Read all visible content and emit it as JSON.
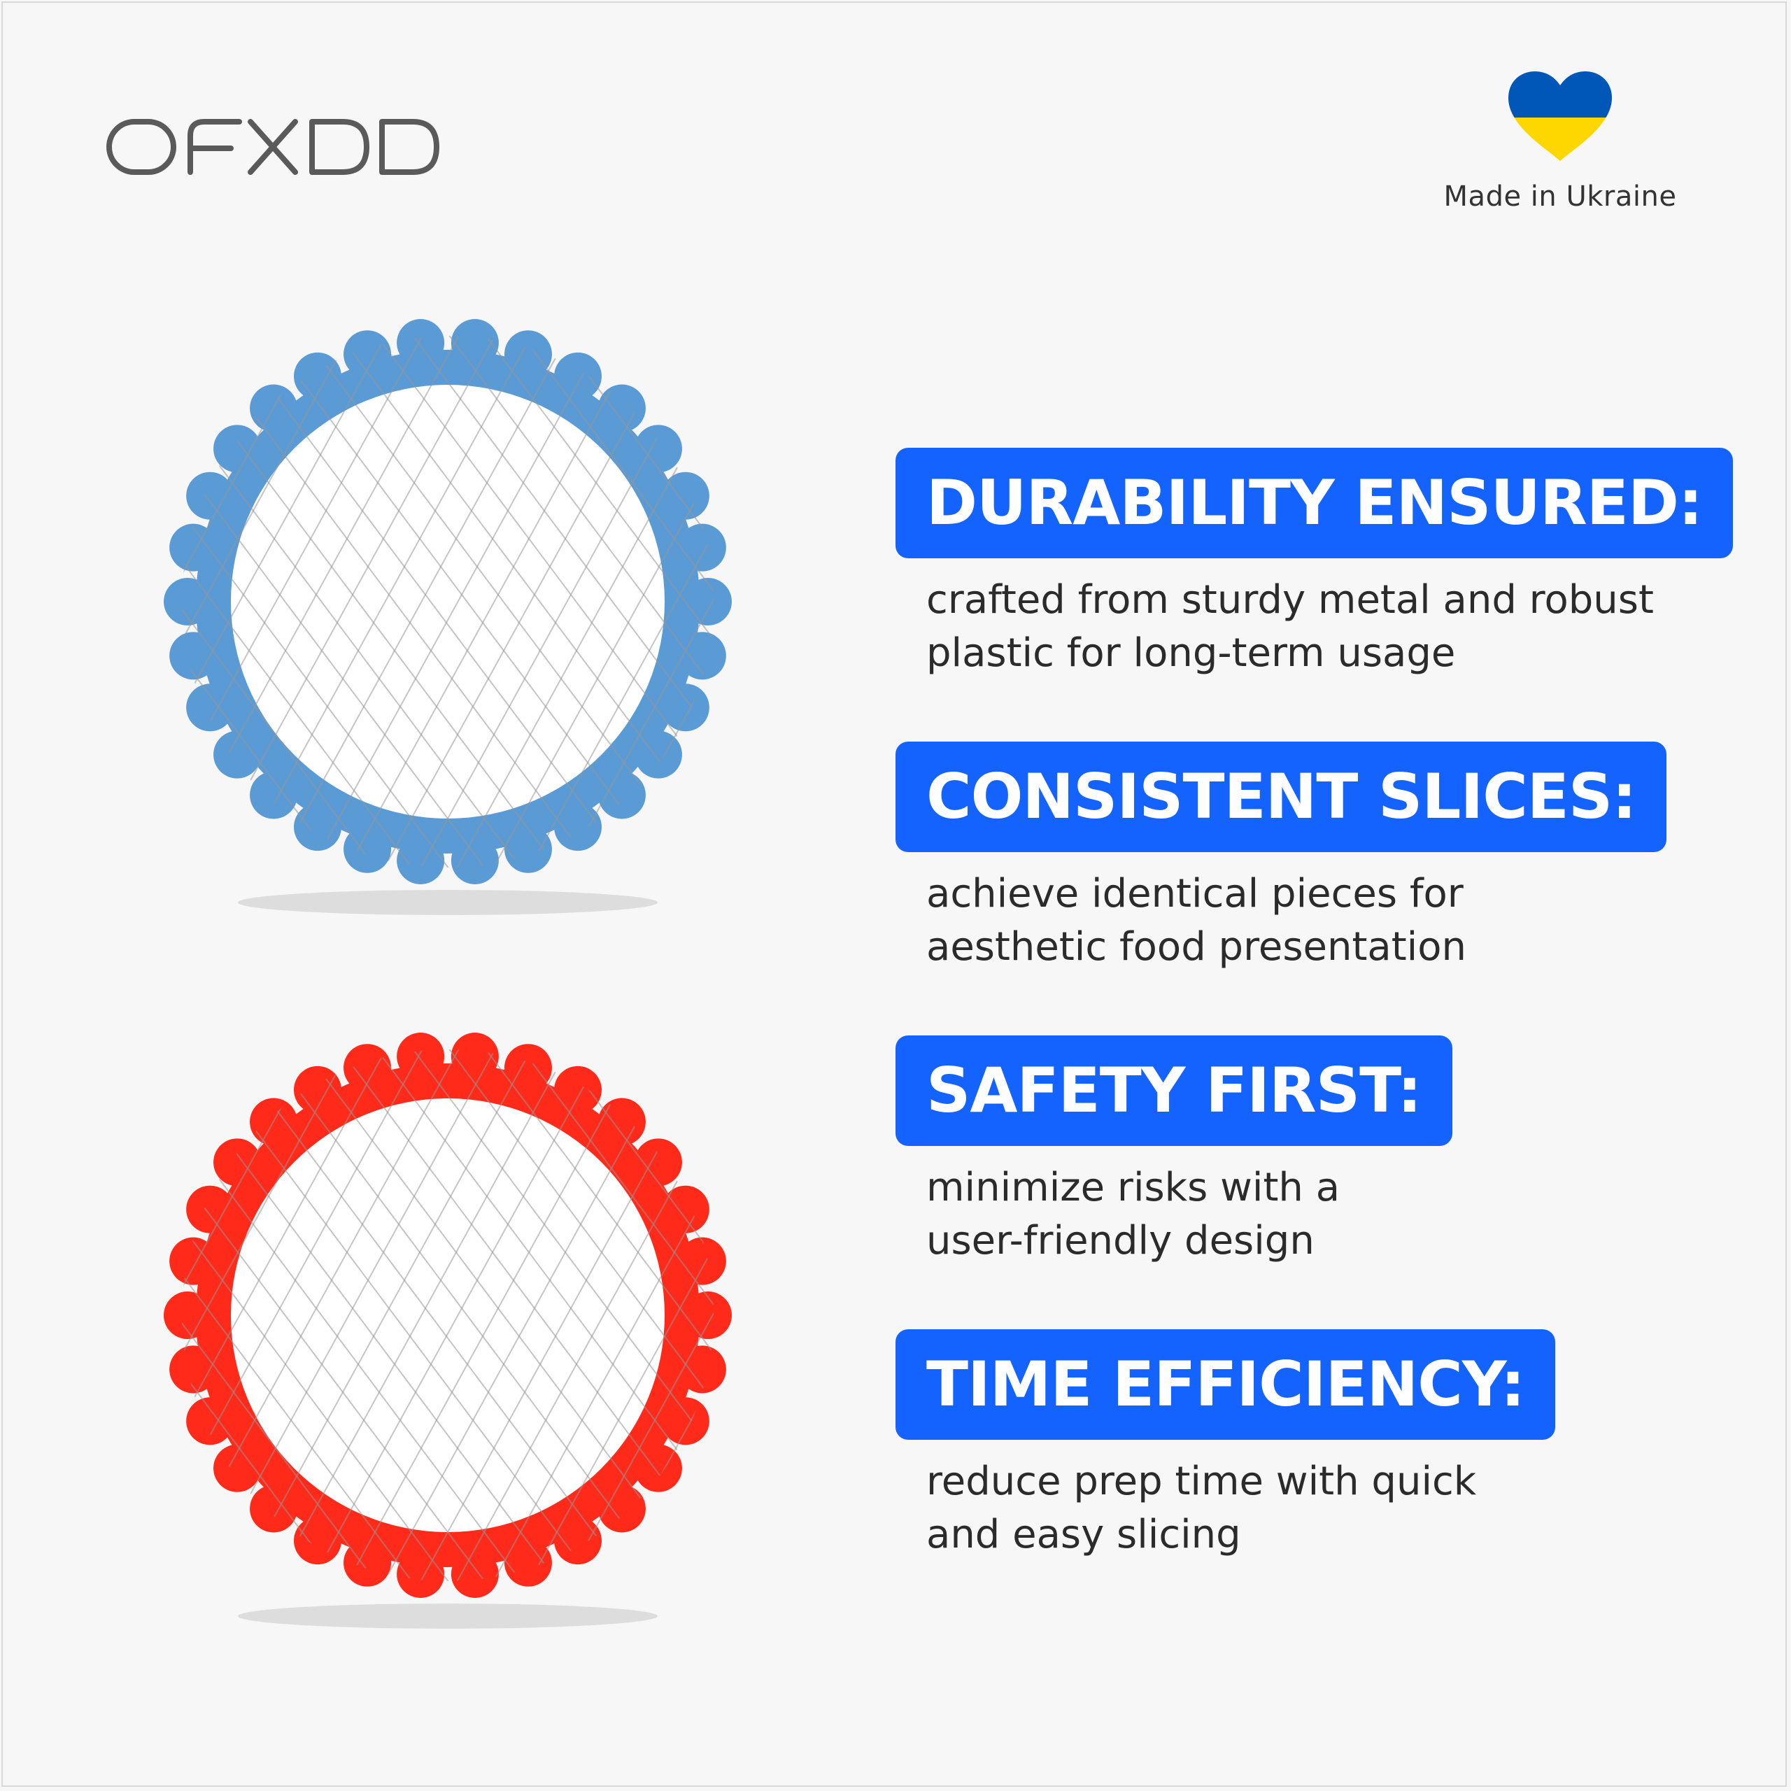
{
  "brand": {
    "name": "OFXDD"
  },
  "origin": {
    "label": "Made in Ukraine",
    "flag_colors": [
      "#0057b7",
      "#ffd700"
    ]
  },
  "products": [
    {
      "name": "blue-slicer",
      "color": "#5b9bd5"
    },
    {
      "name": "red-slicer",
      "color": "#ff2a1a"
    }
  ],
  "accent_color": "#1563ff",
  "features": [
    {
      "title": "DURABILITY ENSURED:",
      "lines": [
        "crafted from sturdy metal and robust",
        "plastic for long-term usage"
      ]
    },
    {
      "title": "CONSISTENT SLICES:",
      "lines": [
        "achieve identical pieces for",
        "aesthetic food presentation"
      ]
    },
    {
      "title": "SAFETY FIRST:",
      "lines": [
        "minimize risks with a",
        "user-friendly design"
      ]
    },
    {
      "title": "TIME EFFICIENCY:",
      "lines": [
        "reduce prep time with quick",
        "and easy slicing"
      ]
    }
  ]
}
